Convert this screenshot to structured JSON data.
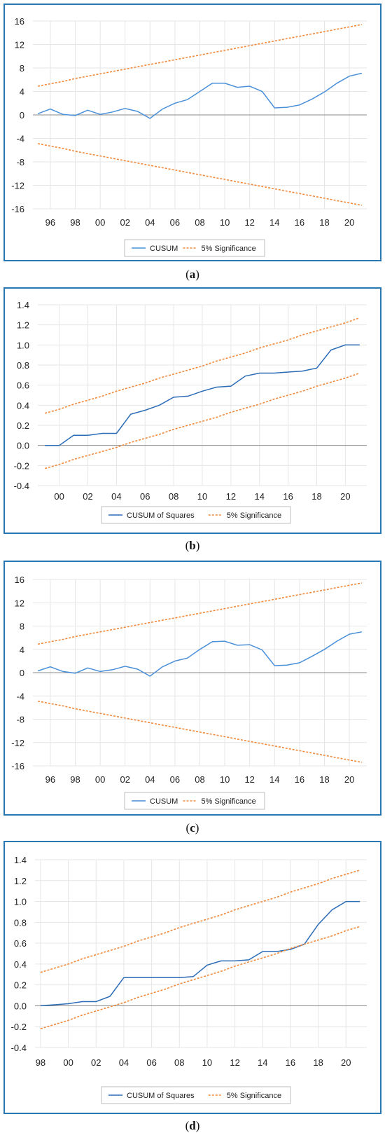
{
  "colors": {
    "frame": "#2a78b2",
    "cusum": "#4a90d9",
    "cusum_sq": "#2b6cb7",
    "bands": "#f08a3c"
  },
  "chart_data": [
    {
      "type": "line",
      "caption_letter": "a",
      "yticks": [
        "16",
        "12",
        "8",
        "4",
        "0",
        "-4",
        "-8",
        "-12",
        "-16"
      ],
      "xticks": [
        "96",
        "98",
        "00",
        "02",
        "04",
        "06",
        "08",
        "10",
        "12",
        "14",
        "16",
        "18",
        "20"
      ],
      "ylim": [
        -16,
        16
      ],
      "x": [
        1995,
        1996,
        1997,
        1998,
        1999,
        2000,
        2001,
        2002,
        2003,
        2004,
        2005,
        2006,
        2007,
        2008,
        2009,
        2010,
        2011,
        2012,
        2013,
        2014,
        2015,
        2016,
        2017,
        2018,
        2019,
        2020,
        2021
      ],
      "series": [
        {
          "name": "CUSUM",
          "style": "solid",
          "values": [
            0.2,
            1.0,
            0.1,
            -0.1,
            0.8,
            0.1,
            0.5,
            1.1,
            0.6,
            -0.6,
            1.0,
            2.0,
            2.6,
            4.0,
            5.4,
            5.4,
            4.7,
            4.9,
            4.0,
            1.2,
            1.3,
            1.7,
            2.7,
            3.9,
            5.4,
            6.6,
            7.1
          ]
        },
        {
          "name": "5% Significance",
          "style": "dashed",
          "values": [
            4.9,
            5.3,
            5.7,
            6.2,
            6.6,
            7.0,
            7.4,
            7.8,
            8.2,
            8.6,
            9.0,
            9.4,
            9.8,
            10.2,
            10.6,
            11.0,
            11.4,
            11.8,
            12.2,
            12.6,
            13.0,
            13.4,
            13.8,
            14.2,
            14.6,
            15.0,
            15.4
          ]
        },
        {
          "name": "",
          "style": "dashed",
          "values": [
            -4.9,
            -5.3,
            -5.7,
            -6.2,
            -6.6,
            -7.0,
            -7.4,
            -7.8,
            -8.2,
            -8.6,
            -9.0,
            -9.4,
            -9.8,
            -10.2,
            -10.6,
            -11.0,
            -11.4,
            -11.8,
            -12.2,
            -12.6,
            -13.0,
            -13.4,
            -13.8,
            -14.2,
            -14.6,
            -15.0,
            -15.4
          ]
        }
      ]
    },
    {
      "type": "line",
      "caption_letter": "b",
      "yticks": [
        "1.4",
        "1.2",
        "1.0",
        "0.8",
        "0.6",
        "0.4",
        "0.2",
        "0.0",
        "-0.2",
        "-0.4"
      ],
      "xticks": [
        "00",
        "02",
        "04",
        "06",
        "08",
        "10",
        "12",
        "14",
        "16",
        "18",
        "20"
      ],
      "ylim": [
        -0.4,
        1.4
      ],
      "x": [
        1999,
        2000,
        2001,
        2002,
        2003,
        2004,
        2005,
        2006,
        2007,
        2008,
        2009,
        2010,
        2011,
        2012,
        2013,
        2014,
        2015,
        2016,
        2017,
        2018,
        2019,
        2020,
        2021
      ],
      "series": [
        {
          "name": "CUSUM of Squares",
          "style": "solid",
          "values": [
            0.0,
            0.0,
            0.1,
            0.1,
            0.12,
            0.12,
            0.31,
            0.35,
            0.4,
            0.48,
            0.49,
            0.54,
            0.58,
            0.59,
            0.69,
            0.72,
            0.72,
            0.73,
            0.74,
            0.77,
            0.95,
            1.0,
            1.0
          ]
        },
        {
          "name": "5% Significance",
          "style": "dashed",
          "values": [
            0.32,
            0.36,
            0.41,
            0.45,
            0.49,
            0.54,
            0.58,
            0.62,
            0.67,
            0.71,
            0.75,
            0.79,
            0.84,
            0.88,
            0.92,
            0.97,
            1.01,
            1.05,
            1.1,
            1.14,
            1.18,
            1.22,
            1.27
          ]
        },
        {
          "name": "",
          "style": "dashed",
          "values": [
            -0.23,
            -0.19,
            -0.14,
            -0.1,
            -0.06,
            -0.02,
            0.03,
            0.07,
            0.11,
            0.16,
            0.2,
            0.24,
            0.28,
            0.33,
            0.37,
            0.41,
            0.46,
            0.5,
            0.54,
            0.59,
            0.63,
            0.67,
            0.72
          ]
        }
      ]
    },
    {
      "type": "line",
      "caption_letter": "c",
      "yticks": [
        "16",
        "12",
        "8",
        "4",
        "0",
        "-4",
        "-8",
        "-12",
        "-16"
      ],
      "xticks": [
        "96",
        "98",
        "00",
        "02",
        "04",
        "06",
        "08",
        "10",
        "12",
        "14",
        "16",
        "18",
        "20"
      ],
      "ylim": [
        -16,
        16
      ],
      "x": [
        1995,
        1996,
        1997,
        1998,
        1999,
        2000,
        2001,
        2002,
        2003,
        2004,
        2005,
        2006,
        2007,
        2008,
        2009,
        2010,
        2011,
        2012,
        2013,
        2014,
        2015,
        2016,
        2017,
        2018,
        2019,
        2020,
        2021
      ],
      "series": [
        {
          "name": "CUSUM",
          "style": "solid",
          "values": [
            0.3,
            1.0,
            0.2,
            -0.1,
            0.8,
            0.2,
            0.5,
            1.1,
            0.6,
            -0.6,
            1.0,
            2.0,
            2.5,
            4.0,
            5.3,
            5.4,
            4.7,
            4.8,
            3.9,
            1.2,
            1.3,
            1.7,
            2.8,
            4.0,
            5.4,
            6.6,
            7.0
          ]
        },
        {
          "name": "5% Significance",
          "style": "dashed",
          "values": [
            4.9,
            5.3,
            5.7,
            6.2,
            6.6,
            7.0,
            7.4,
            7.8,
            8.2,
            8.6,
            9.0,
            9.4,
            9.8,
            10.2,
            10.6,
            11.0,
            11.4,
            11.8,
            12.2,
            12.6,
            13.0,
            13.4,
            13.8,
            14.2,
            14.6,
            15.0,
            15.4
          ]
        },
        {
          "name": "",
          "style": "dashed",
          "values": [
            -4.9,
            -5.3,
            -5.7,
            -6.2,
            -6.6,
            -7.0,
            -7.4,
            -7.8,
            -8.2,
            -8.6,
            -9.0,
            -9.4,
            -9.8,
            -10.2,
            -10.6,
            -11.0,
            -11.4,
            -11.8,
            -12.2,
            -12.6,
            -13.0,
            -13.4,
            -13.8,
            -14.2,
            -14.6,
            -15.0,
            -15.4
          ]
        }
      ]
    },
    {
      "type": "line",
      "caption_letter": "d",
      "yticks": [
        "1.4",
        "1.2",
        "1.0",
        "0.8",
        "0.6",
        "0.4",
        "0.2",
        "0.0",
        "-0.2",
        "-0.4"
      ],
      "xticks": [
        "98",
        "00",
        "02",
        "04",
        "06",
        "08",
        "10",
        "12",
        "14",
        "16",
        "18",
        "20"
      ],
      "ylim": [
        -0.4,
        1.4
      ],
      "x": [
        1998,
        1999,
        2000,
        2001,
        2002,
        2003,
        2004,
        2005,
        2006,
        2007,
        2008,
        2009,
        2010,
        2011,
        2012,
        2013,
        2014,
        2015,
        2016,
        2017,
        2018,
        2019,
        2020,
        2021
      ],
      "series": [
        {
          "name": "CUSUM of Squares",
          "style": "solid",
          "values": [
            0.0,
            0.01,
            0.02,
            0.04,
            0.04,
            0.09,
            0.27,
            0.27,
            0.27,
            0.27,
            0.27,
            0.28,
            0.39,
            0.43,
            0.43,
            0.44,
            0.52,
            0.52,
            0.54,
            0.59,
            0.78,
            0.92,
            1.0,
            1.0
          ]
        },
        {
          "name": "5% Significance",
          "style": "dashed",
          "values": [
            0.32,
            0.36,
            0.4,
            0.45,
            0.49,
            0.53,
            0.57,
            0.62,
            0.66,
            0.7,
            0.75,
            0.79,
            0.83,
            0.87,
            0.92,
            0.96,
            1.0,
            1.04,
            1.09,
            1.13,
            1.17,
            1.22,
            1.26,
            1.3
          ]
        },
        {
          "name": "",
          "style": "dashed",
          "values": [
            -0.22,
            -0.18,
            -0.14,
            -0.09,
            -0.05,
            -0.01,
            0.03,
            0.08,
            0.12,
            0.16,
            0.21,
            0.25,
            0.29,
            0.33,
            0.38,
            0.42,
            0.46,
            0.5,
            0.55,
            0.59,
            0.63,
            0.67,
            0.72,
            0.76
          ]
        }
      ]
    }
  ]
}
